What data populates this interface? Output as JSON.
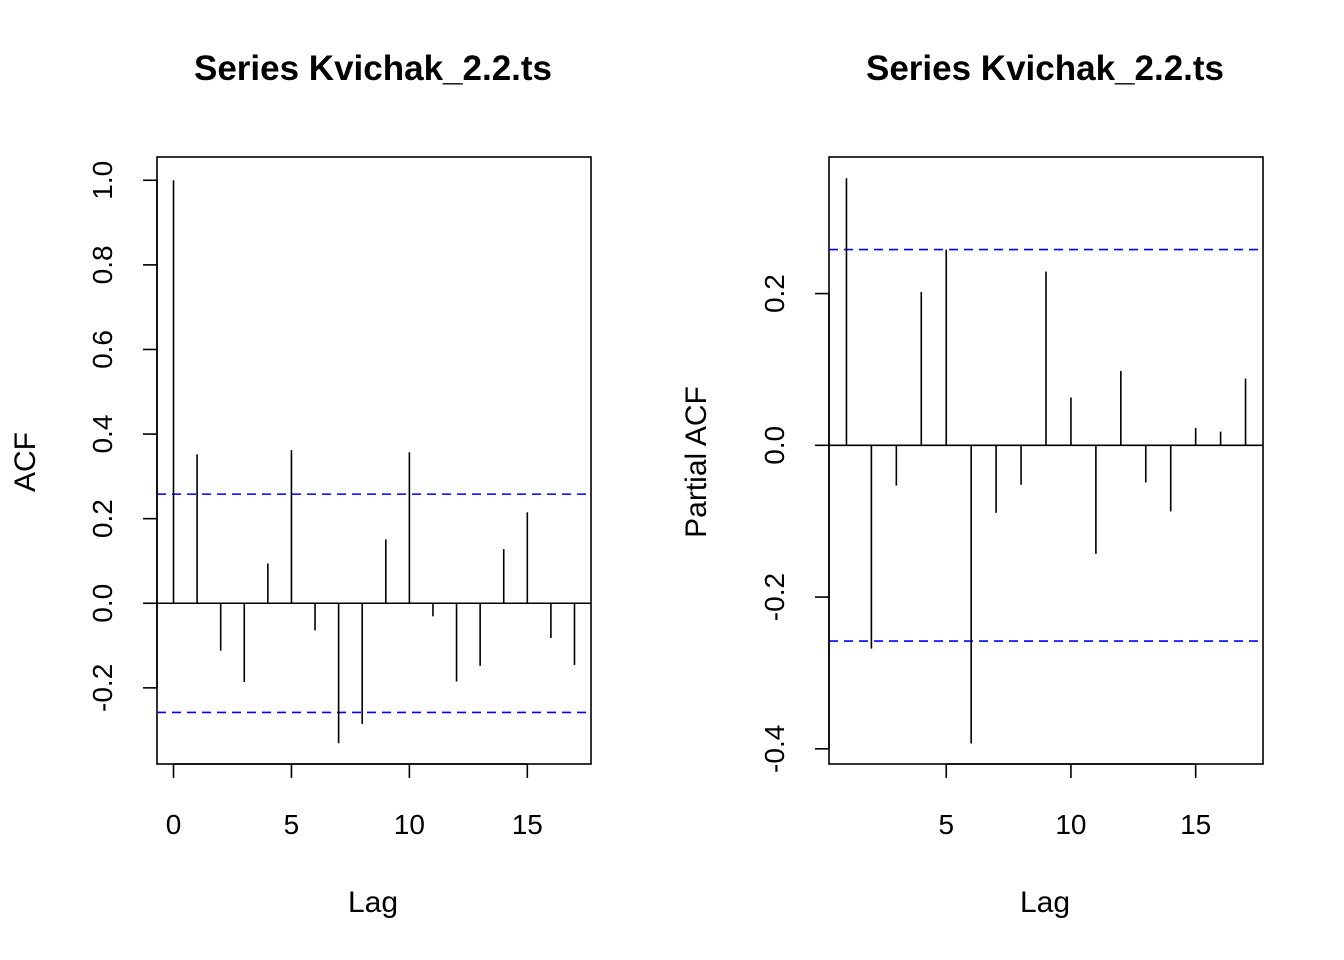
{
  "chart_data": [
    {
      "type": "bar",
      "title": "Series  Kvichak_2.2.ts",
      "xlabel": "Lag",
      "ylabel": "ACF",
      "xlim": [
        -0.7,
        17.7
      ],
      "ylim": [
        -0.38,
        1.055
      ],
      "x_ticks": [
        0,
        5,
        10,
        15
      ],
      "x_tick_labels": [
        "0",
        "5",
        "10",
        "15"
      ],
      "y_ticks": [
        -0.2,
        0.0,
        0.2,
        0.4,
        0.6,
        0.8,
        1.0
      ],
      "y_tick_labels": [
        "-0.2",
        "0.0",
        "0.2",
        "0.4",
        "0.6",
        "0.8",
        "1.0"
      ],
      "confidence_bound": 0.258,
      "lags": [
        0,
        1,
        2,
        3,
        4,
        5,
        6,
        7,
        8,
        9,
        10,
        11,
        12,
        13,
        14,
        15,
        16,
        17
      ],
      "values": [
        1.0,
        0.352,
        -0.112,
        -0.186,
        0.094,
        0.362,
        -0.064,
        -0.331,
        -0.285,
        0.151,
        0.357,
        -0.031,
        -0.185,
        -0.148,
        0.128,
        0.215,
        -0.082,
        -0.146
      ],
      "grid": false
    },
    {
      "type": "bar",
      "title": "Series  Kvichak_2.2.ts",
      "xlabel": "Lag",
      "ylabel": "Partial ACF",
      "xlim": [
        0.3,
        17.7
      ],
      "ylim": [
        -0.42,
        0.38
      ],
      "x_ticks": [
        5,
        10,
        15
      ],
      "x_tick_labels": [
        "5",
        "10",
        "15"
      ],
      "y_ticks": [
        -0.4,
        -0.2,
        0.0,
        0.2
      ],
      "y_tick_labels": [
        "-0.4",
        "-0.2",
        "0.0",
        "0.2"
      ],
      "confidence_bound": 0.258,
      "lags": [
        1,
        2,
        3,
        4,
        5,
        6,
        7,
        8,
        9,
        10,
        11,
        12,
        13,
        14,
        15,
        16,
        17
      ],
      "values": [
        0.352,
        -0.268,
        -0.053,
        0.202,
        0.258,
        -0.393,
        -0.089,
        -0.052,
        0.229,
        0.063,
        -0.143,
        0.098,
        -0.049,
        -0.087,
        0.023,
        0.018,
        0.088
      ],
      "grid": false
    }
  ],
  "colors": {
    "bound_line": "#0000ff",
    "spike": "#000000"
  }
}
